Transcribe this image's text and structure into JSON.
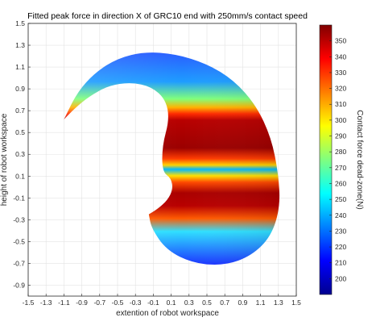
{
  "chart_data": {
    "type": "heatmap",
    "title": "Fitted peak force in direction X of GRC10 end with 250mm/s contact speed",
    "xlabel": "extention of robot workspace",
    "ylabel": "height of robot workspace",
    "xlim": [
      -1.5,
      1.5
    ],
    "ylim": [
      -1.0,
      1.5
    ],
    "x_ticks": [
      "-1.5",
      "-1.3",
      "-1.1",
      "-0.9",
      "-0.7",
      "-0.5",
      "-0.3",
      "-0.1",
      "0.1",
      "0.3",
      "0.5",
      "0.7",
      "0.9",
      "1.1",
      "1.3",
      "1.5"
    ],
    "y_ticks": [
      "1.5",
      "1.3",
      "1.1",
      "0.9",
      "0.7",
      "0.5",
      "0.3",
      "0.1",
      "-0.1",
      "-0.3",
      "-0.5",
      "-0.7",
      "-0.9"
    ],
    "grid": true,
    "colorbar": {
      "label": "Contact force dead-zone(N)",
      "range": [
        190,
        360
      ],
      "ticks": [
        "350",
        "340",
        "330",
        "320",
        "310",
        "300",
        "290",
        "280",
        "270",
        "260",
        "250",
        "240",
        "230",
        "220",
        "210",
        "200"
      ],
      "colormap": "jet"
    },
    "region": {
      "outer_boundary": [
        [
          -1.1,
          0.62
        ],
        [
          -0.95,
          0.87
        ],
        [
          -0.75,
          1.05
        ],
        [
          -0.5,
          1.18
        ],
        [
          -0.2,
          1.24
        ],
        [
          0.15,
          1.22
        ],
        [
          0.5,
          1.13
        ],
        [
          0.8,
          0.98
        ],
        [
          1.05,
          0.75
        ],
        [
          1.22,
          0.45
        ],
        [
          1.3,
          0.12
        ],
        [
          1.32,
          -0.18
        ],
        [
          1.22,
          -0.45
        ],
        [
          1.0,
          -0.63
        ],
        [
          0.7,
          -0.72
        ],
        [
          0.35,
          -0.7
        ],
        [
          0.05,
          -0.58
        ],
        [
          -0.12,
          -0.38
        ],
        [
          -0.15,
          -0.25
        ]
      ],
      "inner_boundary": [
        [
          -0.15,
          -0.25
        ],
        [
          -0.05,
          -0.2
        ],
        [
          0.06,
          -0.12
        ],
        [
          0.12,
          -0.02
        ],
        [
          0.1,
          0.08
        ],
        [
          0.0,
          0.14
        ],
        [
          0.0,
          0.38
        ],
        [
          0.08,
          0.62
        ],
        [
          0.04,
          0.8
        ],
        [
          -0.12,
          0.92
        ],
        [
          -0.35,
          0.96
        ],
        [
          -0.6,
          0.93
        ],
        [
          -0.82,
          0.83
        ],
        [
          -0.98,
          0.72
        ],
        [
          -1.1,
          0.62
        ]
      ],
      "value_bands": [
        {
          "y_range": [
            0.7,
            1.25
          ],
          "force": 220
        },
        {
          "y_range": [
            0.55,
            0.7
          ],
          "force": 300
        },
        {
          "y_range": [
            0.25,
            0.55
          ],
          "force": 355
        },
        {
          "y_range": [
            0.12,
            0.25
          ],
          "force": 290
        },
        {
          "y_range": [
            -0.2,
            0.12
          ],
          "force": 340
        },
        {
          "y_range": [
            -0.72,
            -0.2
          ],
          "force": 225
        }
      ]
    }
  }
}
